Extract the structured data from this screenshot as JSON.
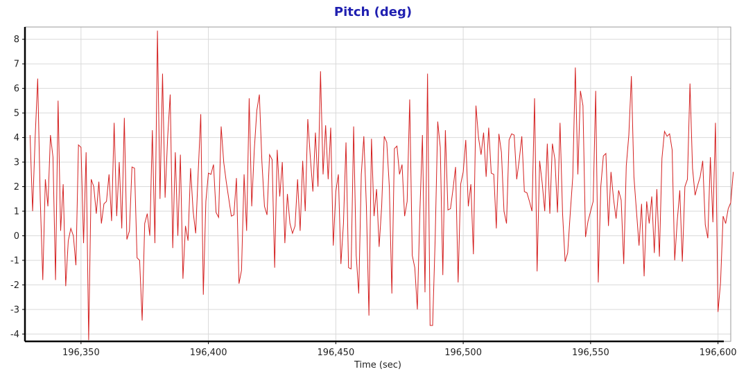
{
  "chart_data": {
    "type": "line",
    "title": "Pitch (deg)",
    "xlabel": "Time (sec)",
    "ylabel": "",
    "xlim": [
      196328,
      196605
    ],
    "ylim": [
      -4.3,
      8.5
    ],
    "x_ticks": [
      196350,
      196400,
      196450,
      196500,
      196550,
      196600
    ],
    "x_tick_labels": [
      "196,350",
      "196,400",
      "196,450",
      "196,500",
      "196,550",
      "196,600"
    ],
    "y_ticks": [
      -4,
      -3,
      -2,
      -1,
      0,
      1,
      2,
      3,
      4,
      5,
      6,
      7,
      8
    ],
    "y_tick_labels": [
      "-4",
      "-3",
      "-2",
      "-1",
      "0",
      "1",
      "2",
      "3",
      "4",
      "5",
      "6",
      "7",
      "8"
    ],
    "grid": true,
    "legend": "none",
    "series": [
      {
        "color": "#d42020",
        "x_start": 196330.0,
        "x_step": 1.0,
        "values": [
          4.1,
          1.0,
          4.0,
          6.4,
          1.5,
          -1.8,
          2.3,
          1.2,
          4.1,
          3.2,
          -1.8,
          5.5,
          0.2,
          2.1,
          -2.05,
          -0.2,
          0.3,
          0.0,
          -1.2,
          3.7,
          3.6,
          -0.3,
          3.4,
          -4.25,
          2.3,
          2.0,
          0.9,
          2.2,
          0.5,
          1.3,
          1.4,
          2.5,
          0.6,
          4.6,
          0.8,
          3.0,
          0.3,
          4.8,
          -0.15,
          0.2,
          2.8,
          2.75,
          -0.9,
          -1.0,
          -3.45,
          0.5,
          0.9,
          0.0,
          4.3,
          -0.3,
          8.35,
          1.5,
          6.6,
          1.55,
          4.0,
          5.75,
          -0.5,
          3.4,
          0.0,
          3.3,
          -1.75,
          0.4,
          -0.2,
          2.75,
          1.0,
          0.1,
          2.6,
          4.95,
          -2.4,
          1.4,
          2.55,
          2.5,
          2.9,
          0.95,
          0.75,
          4.45,
          3.0,
          2.2,
          1.5,
          0.8,
          0.85,
          2.35,
          -1.95,
          -1.4,
          2.5,
          0.2,
          5.6,
          1.2,
          3.5,
          5.1,
          5.75,
          3.0,
          1.2,
          0.85,
          3.3,
          3.1,
          -1.3,
          3.5,
          1.6,
          3.0,
          -0.3,
          1.7,
          0.5,
          0.1,
          0.4,
          2.3,
          0.2,
          3.05,
          1.0,
          4.75,
          3.2,
          1.8,
          4.2,
          2.0,
          6.7,
          2.5,
          4.5,
          2.3,
          4.4,
          -0.4,
          1.8,
          2.5,
          -1.15,
          0.5,
          3.8,
          -1.3,
          -1.35,
          4.45,
          -0.8,
          -2.35,
          2.5,
          4.05,
          1.2,
          -3.25,
          3.95,
          0.8,
          1.9,
          -0.45,
          1.2,
          4.05,
          3.8,
          2.0,
          -2.35,
          3.55,
          3.65,
          2.5,
          2.9,
          0.8,
          1.4,
          5.55,
          -0.8,
          -1.3,
          -3.0,
          1.0,
          4.1,
          -2.3,
          6.6,
          -3.65,
          -3.65,
          -0.1,
          4.65,
          3.6,
          -1.6,
          4.3,
          1.05,
          1.1,
          1.9,
          2.8,
          -1.9,
          2.1,
          2.6,
          3.9,
          1.2,
          2.1,
          -0.75,
          5.3,
          4.0,
          3.3,
          4.2,
          2.4,
          4.4,
          2.55,
          2.5,
          0.3,
          4.15,
          3.4,
          1.0,
          0.5,
          3.9,
          4.15,
          4.1,
          2.3,
          3.1,
          4.05,
          1.8,
          1.75,
          1.4,
          1.0,
          5.6,
          -1.45,
          3.05,
          2.15,
          1.0,
          3.75,
          0.9,
          3.75,
          3.1,
          0.95,
          4.6,
          0.9,
          -1.05,
          -0.7,
          0.9,
          2.4,
          6.85,
          2.5,
          5.9,
          5.3,
          -0.05,
          0.6,
          1.0,
          1.4,
          5.9,
          -1.9,
          2.0,
          3.25,
          3.35,
          0.4,
          2.6,
          1.5,
          0.7,
          1.85,
          1.45,
          -1.15,
          2.85,
          4.1,
          6.5,
          2.4,
          1.0,
          -0.4,
          1.3,
          -1.65,
          1.4,
          0.5,
          1.6,
          -0.7,
          1.9,
          -0.85,
          3.15,
          4.25,
          4.05,
          4.15,
          3.5,
          -1.0,
          0.6,
          1.85,
          -1.05,
          2.0,
          2.3,
          6.2,
          2.75,
          1.65,
          2.05,
          2.4,
          3.05,
          0.45,
          -0.1,
          3.2,
          0.55,
          4.6,
          -3.1,
          -1.9,
          0.8,
          0.5,
          1.1,
          1.35,
          2.6
        ]
      }
    ]
  }
}
